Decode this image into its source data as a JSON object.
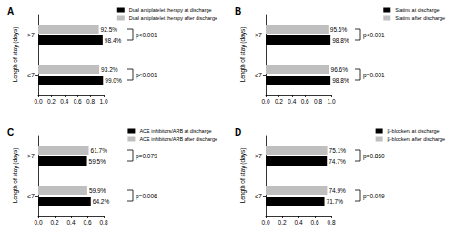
{
  "chart_data": [
    {
      "type": "bar",
      "title": "A",
      "orientation": "horizontal",
      "data_labels": true,
      "grid": false,
      "legend": "upper right",
      "ylabel": "Length of stay (days)",
      "categories": [
        "≤7",
        ">7"
      ],
      "series": [
        {
          "name": "Dual antiplatelet therapy at discharge",
          "color": "#000000",
          "values": [
            0.99,
            0.984
          ],
          "value_labels": [
            "99.0%",
            "98.4%"
          ]
        },
        {
          "name": "Dual antiplatelet therapy after discharge",
          "color": "#bfbfbf",
          "values": [
            0.932,
            0.925
          ],
          "value_labels": [
            "93.2%",
            "92.5%"
          ]
        }
      ],
      "xlim": [
        0,
        1
      ],
      "xticks": [
        {
          "value": 0,
          "label": "0.0"
        },
        0.2,
        0.4,
        0.6,
        0.8,
        {
          "value": 1,
          "label": "1.0"
        }
      ],
      "annotations": [
        {
          "category": "≤7",
          "text": "p<0.001"
        },
        {
          "category": ">7",
          "text": "p<0.001"
        }
      ]
    },
    {
      "type": "bar",
      "title": "B",
      "orientation": "horizontal",
      "data_labels": true,
      "grid": false,
      "legend": "upper right",
      "ylabel": "Length of stay (days)",
      "categories": [
        "≤7",
        ">7"
      ],
      "series": [
        {
          "name": "Statins at discharge",
          "color": "#000000",
          "values": [
            0.988,
            0.988
          ],
          "value_labels": [
            "98.8%",
            "98.8%"
          ]
        },
        {
          "name": "Statins after discharge",
          "color": "#bfbfbf",
          "values": [
            0.966,
            0.956
          ],
          "value_labels": [
            "96.6%",
            "95.6%"
          ]
        }
      ],
      "xlim": [
        0,
        1
      ],
      "xticks": [
        {
          "value": 0,
          "label": "0.0"
        },
        0.2,
        0.4,
        0.6,
        0.8,
        {
          "value": 1,
          "label": "1.0"
        }
      ],
      "annotations": [
        {
          "category": "≤7",
          "text": "p=0.001"
        },
        {
          "category": ">7",
          "text": "p<0.001"
        }
      ]
    },
    {
      "type": "bar",
      "title": "C",
      "orientation": "horizontal",
      "data_labels": true,
      "grid": false,
      "legend": "upper right",
      "ylabel": "Length of stay (days)",
      "categories": [
        "≤7",
        ">7"
      ],
      "series": [
        {
          "name": "ACE inhibitors/ARB at discharge",
          "color": "#000000",
          "values": [
            0.642,
            0.595
          ],
          "value_labels": [
            "64.2%",
            "59.5%"
          ]
        },
        {
          "name": "ACE inhibitors/ARB after discharge",
          "color": "#bfbfbf",
          "values": [
            0.599,
            0.617
          ],
          "value_labels": [
            "59.9%",
            "61.7%"
          ]
        }
      ],
      "xlim": [
        0,
        0.8
      ],
      "xticks": [
        {
          "value": 0,
          "label": "0.0"
        },
        0.2,
        0.4,
        0.6,
        0.8
      ],
      "annotations": [
        {
          "category": "≤7",
          "text": "p=0.006"
        },
        {
          "category": ">7",
          "text": "p=0.079"
        }
      ]
    },
    {
      "type": "bar",
      "title": "D",
      "orientation": "horizontal",
      "data_labels": true,
      "grid": false,
      "legend": "upper right",
      "ylabel": "Length of stay (days)",
      "categories": [
        "≤7",
        ">7"
      ],
      "series": [
        {
          "name": "β-blockers at discharge",
          "color": "#000000",
          "values": [
            0.717,
            0.747
          ],
          "value_labels": [
            "71.7%",
            "74.7%"
          ]
        },
        {
          "name": "β-blockers after discharge",
          "color": "#bfbfbf",
          "values": [
            0.749,
            0.751
          ],
          "value_labels": [
            "74.9%",
            "75.1%"
          ]
        }
      ],
      "xlim": [
        0,
        0.8
      ],
      "xticks": [
        {
          "value": 0,
          "label": "0.0"
        },
        0.2,
        0.4,
        0.6,
        0.8
      ],
      "annotations": [
        {
          "category": "≤7",
          "text": "p=0.049"
        },
        {
          "category": ">7",
          "text": "p=0.860"
        }
      ]
    }
  ]
}
